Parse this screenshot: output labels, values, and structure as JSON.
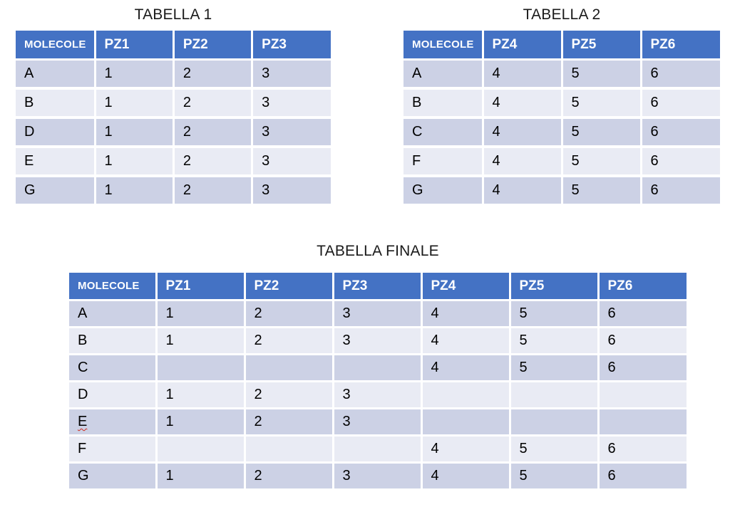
{
  "slide": {
    "background": "#ffffff"
  },
  "colors": {
    "header_bg": "#4472c4",
    "header_text": "#ffffff",
    "band_dark": "#ccd1e5",
    "band_light": "#e9ebf4",
    "cell_text": "#000000",
    "title_text": "#1a1a1a",
    "spellcheck_underline": "#cc2a1d"
  },
  "tables": [
    {
      "title": "TABELLA 1",
      "columns": [
        "MOLECOLE",
        "PZ1",
        "PZ2",
        "PZ3"
      ],
      "rows": [
        {
          "cells": [
            "A",
            "1",
            "2",
            "3"
          ]
        },
        {
          "cells": [
            "B",
            "1",
            "2",
            "3"
          ]
        },
        {
          "cells": [
            "D",
            "1",
            "2",
            "3"
          ]
        },
        {
          "cells": [
            "E",
            "1",
            "2",
            "3"
          ]
        },
        {
          "cells": [
            "G",
            "1",
            "2",
            "3"
          ]
        }
      ]
    },
    {
      "title": "TABELLA 2",
      "columns": [
        "MOLECOLE",
        "PZ4",
        "PZ5",
        "PZ6"
      ],
      "rows": [
        {
          "cells": [
            "A",
            "4",
            "5",
            "6"
          ]
        },
        {
          "cells": [
            "B",
            "4",
            "5",
            "6"
          ]
        },
        {
          "cells": [
            "C",
            "4",
            "5",
            "6"
          ]
        },
        {
          "cells": [
            "F",
            "4",
            "5",
            "6"
          ]
        },
        {
          "cells": [
            "G",
            "4",
            "5",
            "6"
          ]
        }
      ]
    },
    {
      "title": "TABELLA FINALE",
      "columns": [
        "MOLECOLE",
        "PZ1",
        "PZ2",
        "PZ3",
        "PZ4",
        "PZ5",
        "PZ6"
      ],
      "rows": [
        {
          "cells": [
            "A",
            "1",
            "2",
            "3",
            "4",
            "5",
            "6"
          ]
        },
        {
          "cells": [
            "B",
            "1",
            "2",
            "3",
            "4",
            "5",
            "6"
          ]
        },
        {
          "cells": [
            "C",
            "",
            "",
            "",
            "4",
            "5",
            "6"
          ]
        },
        {
          "cells": [
            "D",
            "1",
            "2",
            "3",
            "",
            "",
            ""
          ]
        },
        {
          "cells": [
            "E",
            "1",
            "2",
            "3",
            "",
            "",
            ""
          ],
          "spellcheck": true
        },
        {
          "cells": [
            "F",
            "",
            "",
            "",
            "4",
            "5",
            "6"
          ]
        },
        {
          "cells": [
            "G",
            "1",
            "2",
            "3",
            "4",
            "5",
            "6"
          ]
        }
      ]
    }
  ]
}
